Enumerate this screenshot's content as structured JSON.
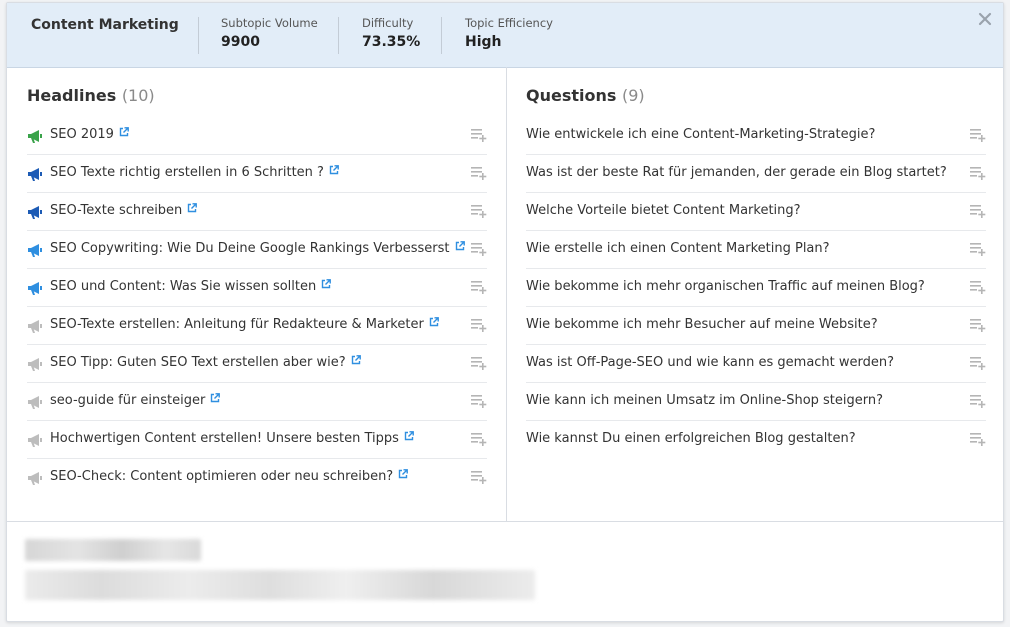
{
  "header": {
    "topic": "Content Marketing",
    "metrics": [
      {
        "label": "Subtopic Volume",
        "value": "9900"
      },
      {
        "label": "Difficulty",
        "value": "73.35%"
      },
      {
        "label": "Topic Efficiency",
        "value": "High"
      }
    ]
  },
  "headlines": {
    "title": "Headlines",
    "count": "(10)",
    "items": [
      {
        "text": "SEO 2019",
        "icon_color": "#3aa34a"
      },
      {
        "text": "SEO Texte richtig erstellen in 6 Schritten ?",
        "icon_color": "#1d5bb5"
      },
      {
        "text": "SEO-Texte schreiben",
        "icon_color": "#1d5bb5"
      },
      {
        "text": "SEO Copywriting: Wie Du Deine Google Rankings Verbesserst",
        "icon_color": "#2f8fe0"
      },
      {
        "text": "SEO und Content: Was Sie wissen sollten",
        "icon_color": "#2f8fe0"
      },
      {
        "text": "SEO-Texte erstellen: Anleitung für Redakteure & Marketer",
        "icon_color": "#bdbdbd"
      },
      {
        "text": "SEO Tipp: Guten SEO Text erstellen aber wie?",
        "icon_color": "#bdbdbd"
      },
      {
        "text": "seo-guide für einsteiger",
        "icon_color": "#bdbdbd"
      },
      {
        "text": "Hochwertigen Content erstellen! Unsere besten Tipps",
        "icon_color": "#bdbdbd"
      },
      {
        "text": "SEO-Check: Content optimieren oder neu schreiben?",
        "icon_color": "#bdbdbd"
      }
    ]
  },
  "questions": {
    "title": "Questions",
    "count": "(9)",
    "items": [
      {
        "text": "Wie entwickele ich eine Content-Marketing-Strategie?"
      },
      {
        "text": "Was ist der beste Rat für jemanden, der gerade ein Blog startet?"
      },
      {
        "text": "Welche Vorteile bietet Content Marketing?"
      },
      {
        "text": "Wie erstelle ich einen Content Marketing Plan?"
      },
      {
        "text": "Wie bekomme ich mehr organischen Traffic auf meinen Blog?"
      },
      {
        "text": "Wie bekomme ich mehr Besucher auf meine Website?"
      },
      {
        "text": "Was ist Off-Page-SEO und wie kann es gemacht werden?"
      },
      {
        "text": "Wie kann ich meinen Umsatz im Online-Shop steigern?"
      },
      {
        "text": "Wie kannst Du einen erfolgreichen Blog gestalten?"
      }
    ]
  },
  "colors": {
    "header_bg": "#e2edf8",
    "link_icon": "#2f8fe0",
    "add_icon": "#b5b5b5"
  },
  "icons": {
    "close": "close-icon",
    "external": "external-link-icon",
    "add": "add-to-list-icon",
    "megaphone": "megaphone-icon"
  }
}
